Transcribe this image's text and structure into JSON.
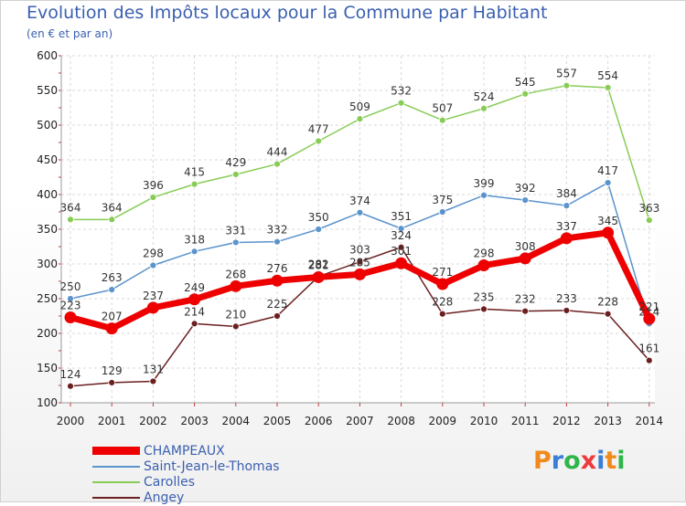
{
  "title": "Evolution des Impôts locaux pour la Commune par Habitant",
  "subtitle": "(en € et par an)",
  "logo": {
    "text": "Proxiti",
    "colors": [
      "#f08a1c",
      "#3b7dd8",
      "#2fb54a",
      "#ee3a3a",
      "#3b7dd8",
      "#f08a1c",
      "#2fb54a"
    ]
  },
  "chart_data": {
    "type": "line",
    "x": [
      "2000",
      "2001",
      "2002",
      "2003",
      "2004",
      "2005",
      "2006",
      "2007",
      "2008",
      "2009",
      "2010",
      "2011",
      "2012",
      "2013",
      "2014"
    ],
    "ylim": [
      100,
      600
    ],
    "yticks": [
      "100",
      "150",
      "200",
      "250",
      "300",
      "350",
      "400",
      "450",
      "500",
      "550",
      "600"
    ],
    "grid": true,
    "legend_position": "bottom-left",
    "series": [
      {
        "name": "Carolles",
        "color": "#88cc55",
        "values": [
          364,
          364,
          396,
          415,
          429,
          444,
          477,
          509,
          532,
          507,
          524,
          545,
          557,
          554,
          363
        ],
        "labels": [
          "364",
          "364",
          "396",
          "415",
          "429",
          "444",
          "477",
          "509",
          "532",
          "507",
          "524",
          "545",
          "557",
          "554",
          "363"
        ]
      },
      {
        "name": "Saint-Jean-le-Thomas",
        "color": "#5b93cc",
        "values": [
          250,
          263,
          298,
          318,
          331,
          332,
          350,
          374,
          351,
          375,
          399,
          392,
          384,
          417,
          214
        ],
        "labels": [
          "250",
          "263",
          "298",
          "318",
          "331",
          "332",
          "350",
          "374",
          "351",
          "375",
          "399",
          "392",
          "384",
          "417",
          "214"
        ]
      },
      {
        "name": "Angey",
        "color": "#6b1f1f",
        "values": [
          124,
          129,
          131,
          214,
          210,
          225,
          282,
          303,
          324,
          228,
          235,
          232,
          233,
          228,
          161
        ],
        "labels": [
          "124",
          "129",
          "131",
          "214",
          "210",
          "225",
          "282",
          "303",
          "324",
          "228",
          "235",
          "232",
          "233",
          "228",
          "161"
        ]
      },
      {
        "name": "CHAMPEAUX",
        "color": "#ee0000",
        "values": [
          223,
          207,
          237,
          249,
          268,
          276,
          281,
          285,
          301,
          271,
          298,
          308,
          337,
          345,
          221
        ],
        "labels": [
          "223",
          "207",
          "237",
          "249",
          "268",
          "276",
          "281",
          "285",
          "301",
          "271",
          "298",
          "308",
          "337",
          "345",
          "221"
        ]
      }
    ],
    "legend_order": [
      "CHAMPEAUX",
      "Saint-Jean-le-Thomas",
      "Carolles",
      "Angey"
    ]
  }
}
